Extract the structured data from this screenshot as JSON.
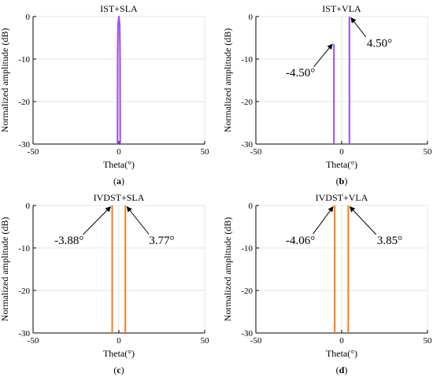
{
  "colors": {
    "purple": "#9c4fe6",
    "orange": "#f07f14",
    "grid": "#e6e6e6",
    "axis": "#000000"
  },
  "chart_data": [
    {
      "type": "line",
      "panel_label": "a",
      "title": "IST+SLA",
      "xlabel": "Theta(°)",
      "ylabel": "Normalized amplitude (dB)",
      "xlim": [
        -50,
        50
      ],
      "ylim": [
        -30,
        0
      ],
      "xticks": [
        "-50",
        "0",
        "50"
      ],
      "yticks": [
        "0",
        "-10",
        "-20",
        "-30"
      ],
      "grid": true,
      "series": [
        {
          "color": "#9c4fe6",
          "x": [
            -0.8,
            -0.7,
            -0.5,
            0,
            0.5,
            0.7,
            0.8
          ],
          "y": [
            -30,
            -9,
            -2,
            0,
            -2,
            -9,
            -30
          ]
        }
      ],
      "annotations": []
    },
    {
      "type": "line",
      "panel_label": "b",
      "title": "IST+VLA",
      "xlabel": "Theta(°)",
      "ylabel": "Normalized amplitude (dB)",
      "xlim": [
        -50,
        50
      ],
      "ylim": [
        -30,
        0
      ],
      "xticks": [
        "-50",
        "0",
        "50"
      ],
      "yticks": [
        "0",
        "-10",
        "-20",
        "-30"
      ],
      "grid": true,
      "series": [
        {
          "color": "#9c4fe6",
          "x": [
            -4.5,
            -4.5
          ],
          "y": [
            -30,
            -6.5
          ]
        },
        {
          "color": "#9c4fe6",
          "x": [
            4.5,
            4.5
          ],
          "y": [
            -30,
            0
          ]
        }
      ],
      "annotations": [
        {
          "text": "-4.50°",
          "x": -4.5,
          "y": -6.5,
          "text_x": -24,
          "text_y": -13
        },
        {
          "text": "4.50°",
          "x": 4.5,
          "y": -0.3,
          "text_x": 22,
          "text_y": -6
        }
      ]
    },
    {
      "type": "line",
      "panel_label": "c",
      "title": "IVDST+SLA",
      "xlabel": "Theta(°)",
      "ylabel": "Normalized amplitude (dB)",
      "xlim": [
        -50,
        50
      ],
      "ylim": [
        -30,
        0
      ],
      "xticks": [
        "-50",
        "0",
        "50"
      ],
      "yticks": [
        "0",
        "-10",
        "-20",
        "-30"
      ],
      "grid": true,
      "series": [
        {
          "color": "#f07f14",
          "x": [
            -3.88,
            -3.88
          ],
          "y": [
            -30,
            0
          ]
        },
        {
          "color": "#f07f14",
          "x": [
            3.77,
            3.77
          ],
          "y": [
            -30,
            0
          ]
        }
      ],
      "annotations": [
        {
          "text": "-3.88°",
          "x": -3.88,
          "y": -0.3,
          "text_x": -29,
          "text_y": -8
        },
        {
          "text": "3.77°",
          "x": 3.77,
          "y": -0.3,
          "text_x": 25,
          "text_y": -8
        }
      ]
    },
    {
      "type": "line",
      "panel_label": "d",
      "title": "IVDST+VLA",
      "xlabel": "Theta(°)",
      "ylabel": "Normalized amplitude (dB)",
      "xlim": [
        -50,
        50
      ],
      "ylim": [
        -30,
        0
      ],
      "xticks": [
        "-50",
        "0",
        "50"
      ],
      "yticks": [
        "0",
        "-10",
        "-20",
        "-30"
      ],
      "grid": true,
      "series": [
        {
          "color": "#f07f14",
          "x": [
            -4.06,
            -4.06
          ],
          "y": [
            -30,
            0
          ]
        },
        {
          "color": "#f07f14",
          "x": [
            3.85,
            3.85
          ],
          "y": [
            -30,
            0
          ]
        }
      ],
      "annotations": [
        {
          "text": "-4.06°",
          "x": -4.06,
          "y": -0.3,
          "text_x": -24,
          "text_y": -8
        },
        {
          "text": "3.85°",
          "x": 3.85,
          "y": -0.3,
          "text_x": 28,
          "text_y": -8
        }
      ]
    }
  ]
}
